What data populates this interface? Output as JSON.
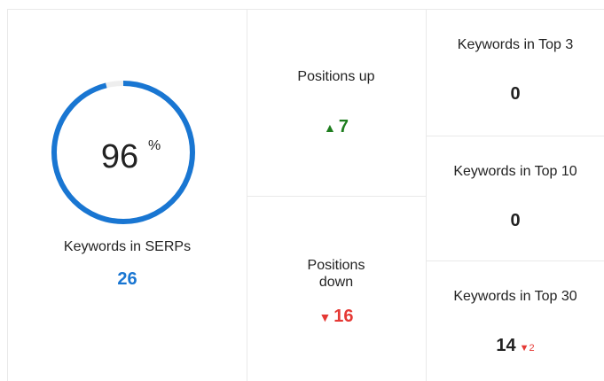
{
  "gauge": {
    "value": 96,
    "unit": "%",
    "label": "Keywords in SERPs",
    "count": 26
  },
  "positions": [
    {
      "label": "Positions up",
      "value": 7,
      "direction": "up"
    },
    {
      "label": "Positions down",
      "value": 16,
      "direction": "down"
    }
  ],
  "tops": [
    {
      "label": "Keywords in Top 3",
      "value": 0
    },
    {
      "label": "Keywords in Top 10",
      "value": 0
    },
    {
      "label": "Keywords in Top 30",
      "value": 14,
      "change": 2,
      "direction": "down"
    }
  ]
}
